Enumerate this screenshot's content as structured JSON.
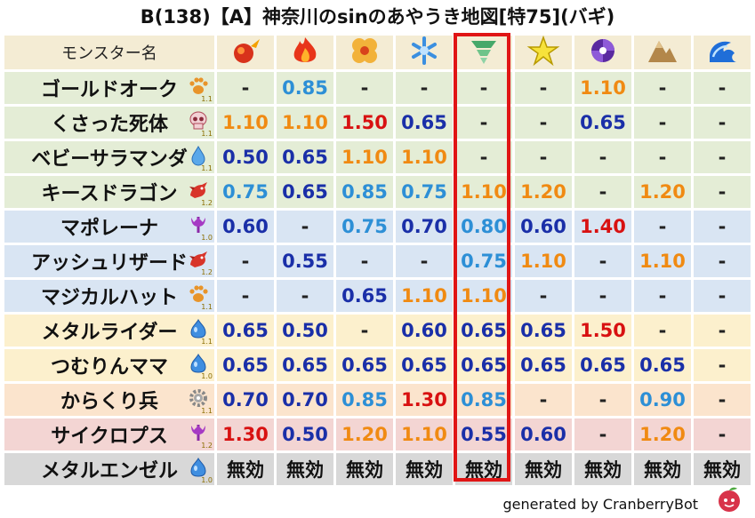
{
  "title": "B(138)【A】神奈川のsinのあやうき地図[特75](バギ)",
  "header_label": "モンスター名",
  "elements": [
    {
      "icon": "mera-fire-icon"
    },
    {
      "icon": "gira-flame-icon"
    },
    {
      "icon": "io-explosion-icon"
    },
    {
      "icon": "hyado-ice-icon"
    },
    {
      "icon": "bagi-wind-icon"
    },
    {
      "icon": "dein-lightning-icon"
    },
    {
      "icon": "doruma-dark-icon"
    },
    {
      "icon": "jibarica-earth-icon"
    },
    {
      "icon": "water-wave-icon"
    }
  ],
  "rows": [
    {
      "name": "ゴールドオーク",
      "icon": "paw-icon",
      "level": "1.1",
      "bg": "green",
      "cells": [
        {
          "t": "-",
          "c": "dash"
        },
        {
          "t": "0.85",
          "c": "lblue"
        },
        {
          "t": "-",
          "c": "dash"
        },
        {
          "t": "-",
          "c": "dash"
        },
        {
          "t": "-",
          "c": "dash"
        },
        {
          "t": "-",
          "c": "dash"
        },
        {
          "t": "1.10",
          "c": "orange"
        },
        {
          "t": "-",
          "c": "dash"
        },
        {
          "t": "-",
          "c": "dash"
        }
      ]
    },
    {
      "name": "くさった死体",
      "icon": "skull-icon",
      "level": "1.1",
      "bg": "green",
      "cells": [
        {
          "t": "1.10",
          "c": "orange"
        },
        {
          "t": "1.10",
          "c": "orange"
        },
        {
          "t": "1.50",
          "c": "red"
        },
        {
          "t": "0.65",
          "c": "blue"
        },
        {
          "t": "-",
          "c": "dash"
        },
        {
          "t": "-",
          "c": "dash"
        },
        {
          "t": "0.65",
          "c": "blue"
        },
        {
          "t": "-",
          "c": "dash"
        },
        {
          "t": "-",
          "c": "dash"
        }
      ]
    },
    {
      "name": "ベビーサラマンダ",
      "icon": "droplet-icon",
      "level": "1.1",
      "bg": "green",
      "cells": [
        {
          "t": "0.50",
          "c": "blue"
        },
        {
          "t": "0.65",
          "c": "blue"
        },
        {
          "t": "1.10",
          "c": "orange"
        },
        {
          "t": "1.10",
          "c": "orange"
        },
        {
          "t": "-",
          "c": "dash"
        },
        {
          "t": "-",
          "c": "dash"
        },
        {
          "t": "-",
          "c": "dash"
        },
        {
          "t": "-",
          "c": "dash"
        },
        {
          "t": "-",
          "c": "dash"
        }
      ]
    },
    {
      "name": "キースドラゴン",
      "icon": "dragon-icon",
      "level": "1.2",
      "bg": "green",
      "cells": [
        {
          "t": "0.75",
          "c": "lblue"
        },
        {
          "t": "0.65",
          "c": "blue"
        },
        {
          "t": "0.85",
          "c": "lblue"
        },
        {
          "t": "0.75",
          "c": "lblue"
        },
        {
          "t": "1.10",
          "c": "orange"
        },
        {
          "t": "1.20",
          "c": "orange"
        },
        {
          "t": "-",
          "c": "dash"
        },
        {
          "t": "1.20",
          "c": "orange"
        },
        {
          "t": "-",
          "c": "dash"
        }
      ]
    },
    {
      "name": "マポレーナ",
      "icon": "demon-icon",
      "level": "1.0",
      "bg": "blue",
      "cells": [
        {
          "t": "0.60",
          "c": "blue"
        },
        {
          "t": "-",
          "c": "dash"
        },
        {
          "t": "0.75",
          "c": "lblue"
        },
        {
          "t": "0.70",
          "c": "blue"
        },
        {
          "t": "0.80",
          "c": "lblue"
        },
        {
          "t": "0.60",
          "c": "blue"
        },
        {
          "t": "1.40",
          "c": "red"
        },
        {
          "t": "-",
          "c": "dash"
        },
        {
          "t": "-",
          "c": "dash"
        }
      ]
    },
    {
      "name": "アッシュリザード",
      "icon": "dragon-icon",
      "level": "1.2",
      "bg": "blue",
      "cells": [
        {
          "t": "-",
          "c": "dash"
        },
        {
          "t": "0.55",
          "c": "blue"
        },
        {
          "t": "-",
          "c": "dash"
        },
        {
          "t": "-",
          "c": "dash"
        },
        {
          "t": "0.75",
          "c": "lblue"
        },
        {
          "t": "1.10",
          "c": "orange"
        },
        {
          "t": "-",
          "c": "dash"
        },
        {
          "t": "1.10",
          "c": "orange"
        },
        {
          "t": "-",
          "c": "dash"
        }
      ]
    },
    {
      "name": "マジカルハット",
      "icon": "paw-icon",
      "level": "1.1",
      "bg": "blue",
      "cells": [
        {
          "t": "-",
          "c": "dash"
        },
        {
          "t": "-",
          "c": "dash"
        },
        {
          "t": "0.65",
          "c": "blue"
        },
        {
          "t": "1.10",
          "c": "orange"
        },
        {
          "t": "1.10",
          "c": "orange"
        },
        {
          "t": "-",
          "c": "dash"
        },
        {
          "t": "-",
          "c": "dash"
        },
        {
          "t": "-",
          "c": "dash"
        },
        {
          "t": "-",
          "c": "dash"
        }
      ]
    },
    {
      "name": "メタルライダー",
      "icon": "slime-icon",
      "level": "1.1",
      "bg": "yellow",
      "cells": [
        {
          "t": "0.65",
          "c": "blue"
        },
        {
          "t": "0.50",
          "c": "blue"
        },
        {
          "t": "-",
          "c": "dash"
        },
        {
          "t": "0.60",
          "c": "blue"
        },
        {
          "t": "0.65",
          "c": "blue"
        },
        {
          "t": "0.65",
          "c": "blue"
        },
        {
          "t": "1.50",
          "c": "red"
        },
        {
          "t": "-",
          "c": "dash"
        },
        {
          "t": "-",
          "c": "dash"
        }
      ]
    },
    {
      "name": "つむりんママ",
      "icon": "slime-icon",
      "level": "1.0",
      "bg": "yellow",
      "cells": [
        {
          "t": "0.65",
          "c": "blue"
        },
        {
          "t": "0.65",
          "c": "blue"
        },
        {
          "t": "0.65",
          "c": "blue"
        },
        {
          "t": "0.65",
          "c": "blue"
        },
        {
          "t": "0.65",
          "c": "blue"
        },
        {
          "t": "0.65",
          "c": "blue"
        },
        {
          "t": "0.65",
          "c": "blue"
        },
        {
          "t": "0.65",
          "c": "blue"
        },
        {
          "t": "-",
          "c": "dash"
        }
      ]
    },
    {
      "name": "からくり兵",
      "icon": "gear-icon",
      "level": "1.1",
      "bg": "orange",
      "cells": [
        {
          "t": "0.70",
          "c": "blue"
        },
        {
          "t": "0.70",
          "c": "blue"
        },
        {
          "t": "0.85",
          "c": "lblue"
        },
        {
          "t": "1.30",
          "c": "red"
        },
        {
          "t": "0.85",
          "c": "lblue"
        },
        {
          "t": "-",
          "c": "dash"
        },
        {
          "t": "-",
          "c": "dash"
        },
        {
          "t": "0.90",
          "c": "lblue"
        },
        {
          "t": "-",
          "c": "dash"
        }
      ]
    },
    {
      "name": "サイクロプス",
      "icon": "demon-icon",
      "level": "1.2",
      "bg": "red",
      "cells": [
        {
          "t": "1.30",
          "c": "red"
        },
        {
          "t": "0.50",
          "c": "blue"
        },
        {
          "t": "1.20",
          "c": "orange"
        },
        {
          "t": "1.10",
          "c": "orange"
        },
        {
          "t": "0.55",
          "c": "blue"
        },
        {
          "t": "0.60",
          "c": "blue"
        },
        {
          "t": "-",
          "c": "dash"
        },
        {
          "t": "1.20",
          "c": "orange"
        },
        {
          "t": "-",
          "c": "dash"
        }
      ]
    },
    {
      "name": "メタルエンゼル",
      "icon": "slime-icon",
      "level": "1.0",
      "bg": "gray",
      "cells": [
        {
          "t": "無効",
          "c": "none"
        },
        {
          "t": "無効",
          "c": "none"
        },
        {
          "t": "無効",
          "c": "none"
        },
        {
          "t": "無効",
          "c": "none"
        },
        {
          "t": "無効",
          "c": "none"
        },
        {
          "t": "無効",
          "c": "none"
        },
        {
          "t": "無効",
          "c": "none"
        },
        {
          "t": "無効",
          "c": "none"
        },
        {
          "t": "無効",
          "c": "none"
        }
      ]
    }
  ],
  "highlighted_column": 4,
  "footer": "generated by CranberryBot",
  "footer_logo": "cranberry-logo-icon"
}
